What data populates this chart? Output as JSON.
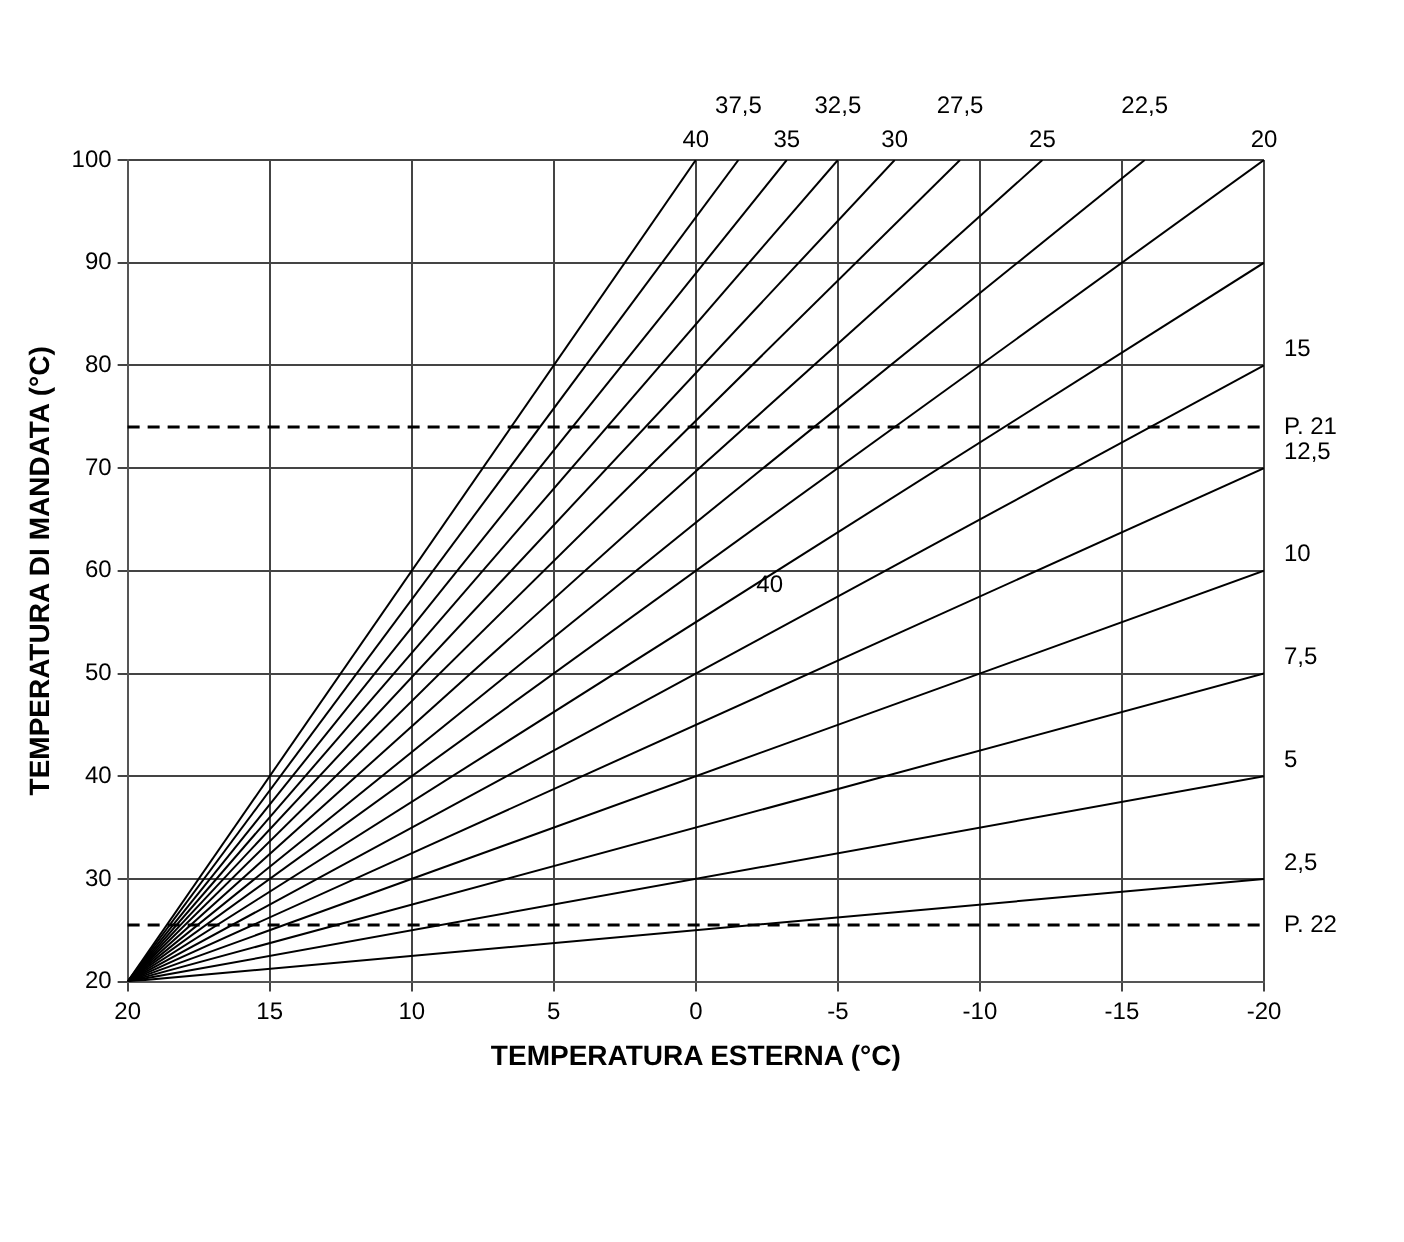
{
  "chart_data": {
    "type": "line",
    "xlabel": "TEMPERATURA ESTERNA (°C)",
    "ylabel": "TEMPERATURA DI MANDATA (°C)",
    "xlim": [
      20,
      -20
    ],
    "xticks": [
      20,
      15,
      10,
      5,
      0,
      -5,
      -10,
      -15,
      -20
    ],
    "ylim": [
      20,
      100
    ],
    "yticks": [
      20,
      30,
      40,
      50,
      60,
      70,
      80,
      90,
      100
    ],
    "grid": true,
    "legend": false,
    "marker": "none",
    "line_style": "solid",
    "series": [
      {
        "name": "40",
        "color": "#000000",
        "x": [
          20,
          0
        ],
        "values": [
          20,
          100
        ]
      },
      {
        "name": "37,5",
        "color": "#000000",
        "x": [
          20,
          -1.5
        ],
        "values": [
          20,
          100
        ]
      },
      {
        "name": "35",
        "color": "#000000",
        "x": [
          20,
          -3.2
        ],
        "values": [
          20,
          100
        ]
      },
      {
        "name": "32,5",
        "color": "#000000",
        "x": [
          20,
          -5
        ],
        "values": [
          20,
          100
        ]
      },
      {
        "name": "30",
        "color": "#000000",
        "x": [
          20,
          -7
        ],
        "values": [
          20,
          100
        ]
      },
      {
        "name": "27,5",
        "color": "#000000",
        "x": [
          20,
          -9.3
        ],
        "values": [
          20,
          100
        ]
      },
      {
        "name": "25",
        "color": "#000000",
        "x": [
          20,
          -12.2
        ],
        "values": [
          20,
          100
        ]
      },
      {
        "name": "22,5",
        "color": "#000000",
        "x": [
          20,
          -15.8
        ],
        "values": [
          20,
          100
        ]
      },
      {
        "name": "20",
        "color": "#000000",
        "x": [
          20,
          -20
        ],
        "values": [
          20,
          100
        ]
      },
      {
        "color": "#000000",
        "x": [
          20,
          -20
        ],
        "values": [
          20,
          90
        ]
      },
      {
        "name": "15",
        "color": "#000000",
        "x": [
          20,
          -20
        ],
        "values": [
          20,
          80
        ]
      },
      {
        "name": "12,5",
        "color": "#000000",
        "x": [
          20,
          -20
        ],
        "values": [
          20,
          70
        ]
      },
      {
        "name": "10",
        "color": "#000000",
        "x": [
          20,
          -20
        ],
        "values": [
          20,
          60
        ]
      },
      {
        "name": "7,5",
        "color": "#000000",
        "x": [
          20,
          -20
        ],
        "values": [
          20,
          50
        ]
      },
      {
        "name": "5",
        "color": "#000000",
        "x": [
          20,
          -20
        ],
        "values": [
          20,
          40
        ]
      },
      {
        "name": "2,5",
        "color": "#000000",
        "x": [
          20,
          -20
        ],
        "values": [
          20,
          30
        ]
      }
    ],
    "ref_lines": [
      {
        "axis": "y",
        "value": 74,
        "label": "P. 21",
        "color": "#000000",
        "line_style": "dashed"
      },
      {
        "axis": "y",
        "value": 25.5,
        "label": "P. 22",
        "color": "#000000",
        "line_style": "dashed"
      }
    ],
    "annotations": [
      {
        "text": "40",
        "x": -2.6,
        "y": 58.6
      }
    ]
  }
}
